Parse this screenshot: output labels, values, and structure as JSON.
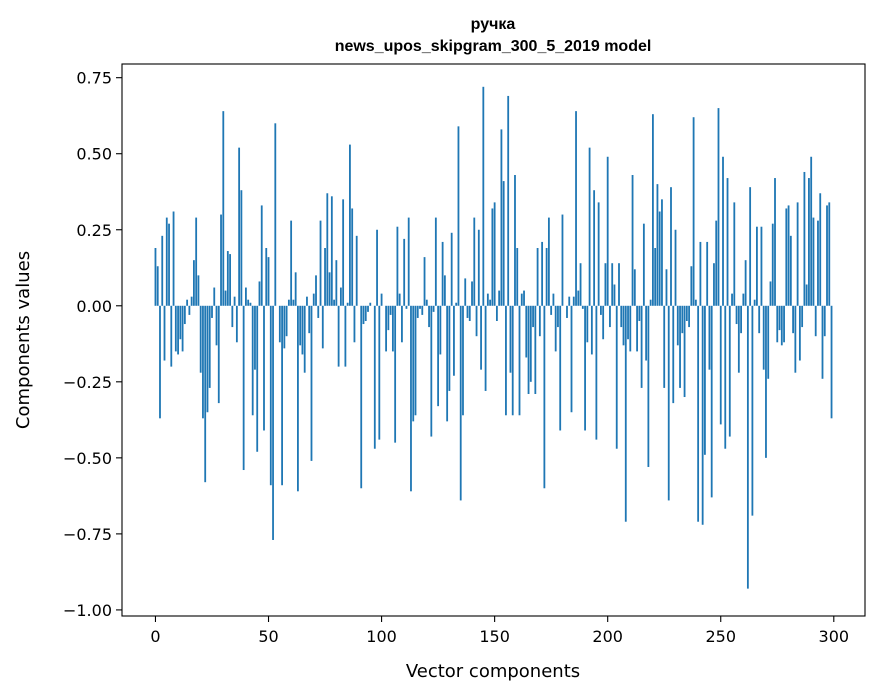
{
  "chart_data": {
    "type": "bar",
    "title": "ручка",
    "subtitle": "news_upos_skipgram_300_5_2019 model",
    "xlabel": "Vector components",
    "ylabel": "Components values",
    "xlim": [
      -14.8,
      313.8
    ],
    "ylim": [
      -1.02,
      0.795
    ],
    "xticks": [
      0,
      50,
      100,
      150,
      200,
      250,
      300
    ],
    "yticks": [
      0.75,
      0.5,
      0.25,
      0.0,
      -0.25,
      -0.5,
      -0.75,
      -1.0
    ],
    "ytick_labels": [
      "0.75",
      "0.50",
      "0.25",
      "0.00",
      "−0.25",
      "−0.50",
      "−0.75",
      "−1.00"
    ],
    "bar_color": "#1f77b4",
    "grid": false,
    "values": [
      0.19,
      0.13,
      -0.37,
      0.23,
      -0.18,
      0.29,
      0.27,
      -0.2,
      0.31,
      -0.15,
      -0.16,
      -0.11,
      -0.15,
      -0.06,
      0.02,
      -0.03,
      0.03,
      0.15,
      0.29,
      0.1,
      -0.22,
      -0.37,
      -0.58,
      -0.35,
      -0.27,
      -0.04,
      0.06,
      -0.13,
      -0.32,
      0.3,
      0.64,
      0.05,
      0.18,
      0.17,
      -0.07,
      0.03,
      -0.12,
      0.52,
      0.38,
      -0.54,
      0.06,
      0.02,
      0.01,
      -0.36,
      -0.21,
      -0.48,
      0.08,
      0.33,
      -0.41,
      0.19,
      0.16,
      -0.59,
      -0.77,
      0.6,
      0.0,
      -0.12,
      -0.59,
      -0.14,
      -0.1,
      0.02,
      0.28,
      0.02,
      0.11,
      -0.61,
      -0.13,
      -0.16,
      -0.22,
      0.03,
      -0.09,
      -0.51,
      0.04,
      0.1,
      -0.04,
      0.28,
      -0.14,
      0.19,
      0.37,
      0.11,
      0.36,
      0.02,
      0.15,
      -0.2,
      0.06,
      0.35,
      -0.2,
      0.01,
      0.53,
      0.32,
      -0.12,
      0.23,
      0.0,
      -0.6,
      -0.06,
      -0.05,
      -0.02,
      0.01,
      0.0,
      -0.47,
      0.25,
      -0.44,
      0.04,
      0.0,
      -0.15,
      -0.08,
      -0.03,
      -0.15,
      -0.45,
      0.26,
      0.04,
      -0.12,
      0.22,
      -0.01,
      0.29,
      -0.61,
      -0.38,
      -0.36,
      -0.04,
      -0.01,
      -0.03,
      0.16,
      0.02,
      -0.07,
      -0.43,
      -0.02,
      0.29,
      -0.33,
      -0.16,
      0.21,
      0.1,
      -0.38,
      -0.28,
      0.24,
      -0.23,
      0.01,
      0.59,
      -0.64,
      -0.36,
      0.09,
      -0.04,
      -0.05,
      0.08,
      0.29,
      -0.1,
      0.25,
      -0.21,
      0.72,
      -0.28,
      0.04,
      0.02,
      0.32,
      0.34,
      -0.05,
      0.05,
      0.58,
      0.41,
      -0.36,
      0.69,
      -0.22,
      -0.36,
      0.43,
      0.19,
      -0.36,
      0.04,
      0.05,
      -0.17,
      -0.29,
      -0.25,
      -0.07,
      -0.29,
      0.19,
      -0.1,
      0.21,
      -0.6,
      0.19,
      0.29,
      -0.03,
      0.04,
      -0.15,
      -0.07,
      -0.41,
      0.3,
      0.0,
      -0.04,
      0.03,
      -0.35,
      0.03,
      0.64,
      0.05,
      0.14,
      -0.01,
      -0.41,
      -0.12,
      0.52,
      -0.16,
      0.38,
      -0.44,
      0.34,
      -0.03,
      -0.11,
      0.14,
      0.49,
      -0.07,
      0.14,
      0.07,
      -0.47,
      0.14,
      -0.07,
      -0.13,
      -0.71,
      -0.11,
      -0.15,
      0.43,
      0.12,
      -0.15,
      -0.05,
      -0.27,
      0.27,
      -0.18,
      -0.53,
      0.02,
      0.63,
      0.19,
      0.4,
      0.31,
      0.35,
      -0.27,
      0.12,
      -0.64,
      0.39,
      -0.32,
      0.25,
      -0.13,
      -0.27,
      -0.09,
      -0.3,
      -0.05,
      -0.07,
      0.13,
      0.62,
      0.02,
      -0.71,
      0.21,
      -0.72,
      -0.49,
      0.21,
      -0.21,
      -0.63,
      0.14,
      0.28,
      0.65,
      -0.39,
      0.49,
      -0.47,
      0.42,
      -0.43,
      0.04,
      0.34,
      -0.06,
      -0.22,
      -0.09,
      0.04,
      0.15,
      -0.93,
      0.39,
      -0.69,
      0.02,
      0.26,
      -0.09,
      0.26,
      -0.21,
      -0.5,
      -0.24,
      0.08,
      0.27,
      0.42,
      -0.12,
      -0.08,
      -0.13,
      -0.12,
      0.32,
      0.33,
      0.23,
      -0.09,
      -0.22,
      0.34,
      -0.18,
      -0.07,
      0.44,
      0.07,
      0.42,
      0.49,
      0.29,
      -0.1,
      0.28,
      0.37,
      -0.24,
      -0.1,
      0.33,
      0.34,
      -0.37
    ]
  }
}
